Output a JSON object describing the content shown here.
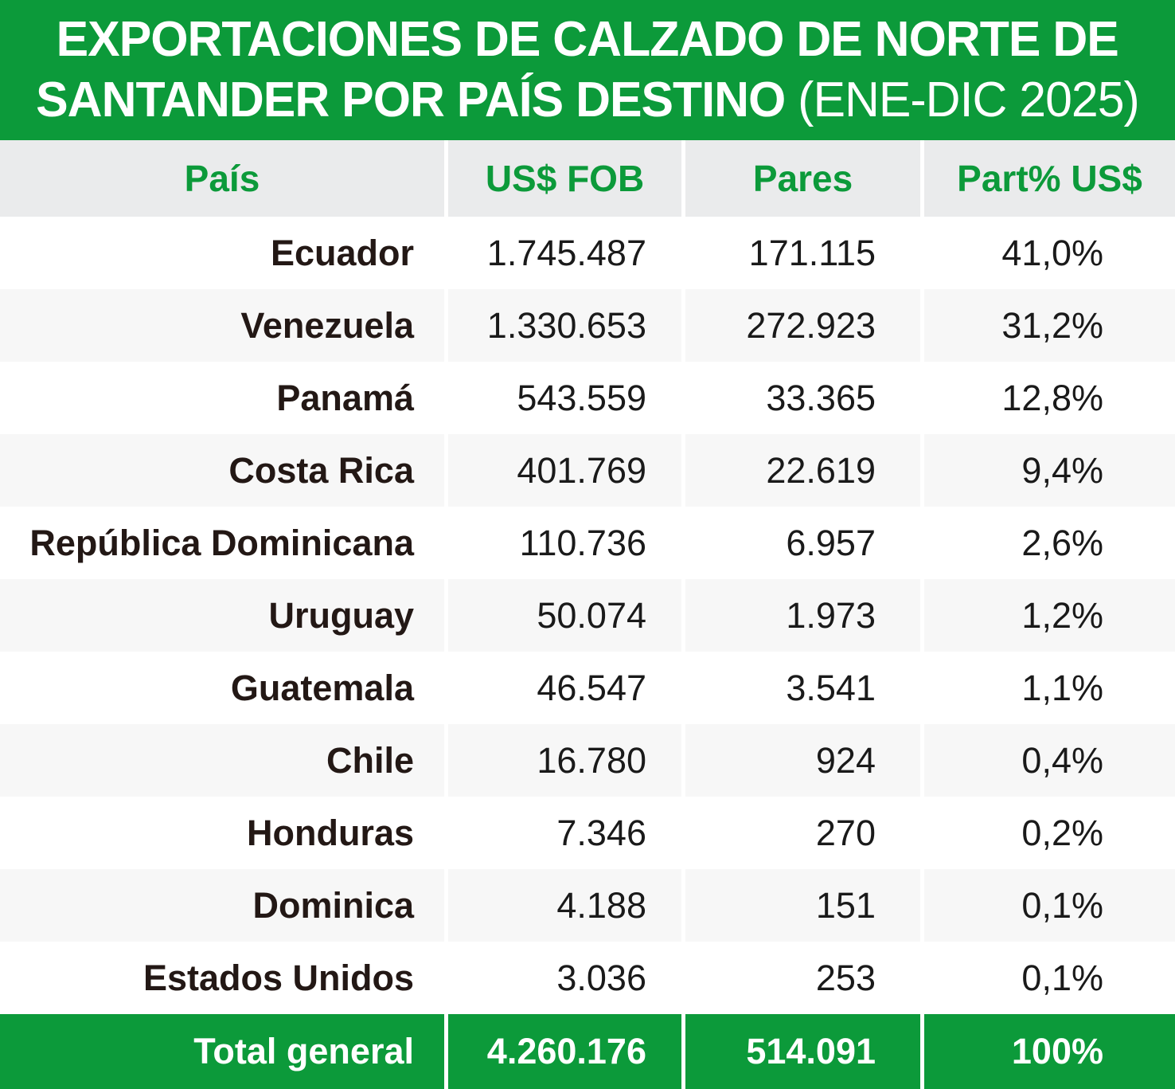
{
  "title": {
    "line1": "EXPORTACIONES DE CALZADO DE NORTE DE",
    "line2_bold": "SANTANDER POR PAÍS DESTINO ",
    "line2_light": "(ENE-DIC 2025)"
  },
  "colors": {
    "accent_green": "#0c9a3a",
    "header_bg": "#eaebec",
    "text_dark": "#231815"
  },
  "chart_data": {
    "type": "table",
    "title": "EXPORTACIONES DE CALZADO DE NORTE DE SANTANDER POR PAÍS DESTINO (ENE-DIC 2025)",
    "columns": [
      "País",
      "US$ FOB",
      "Pares",
      "Part% US$"
    ],
    "rows": [
      [
        "Ecuador",
        "1.745.487",
        "171.115",
        "41,0%"
      ],
      [
        "Venezuela",
        "1.330.653",
        "272.923",
        "31,2%"
      ],
      [
        "Panamá",
        "543.559",
        "33.365",
        "12,8%"
      ],
      [
        "Costa Rica",
        "401.769",
        "22.619",
        "9,4%"
      ],
      [
        "República Dominicana",
        "110.736",
        "6.957",
        "2,6%"
      ],
      [
        "Uruguay",
        "50.074",
        "1.973",
        "1,2%"
      ],
      [
        "Guatemala",
        "46.547",
        "3.541",
        "1,1%"
      ],
      [
        "Chile",
        "16.780",
        "924",
        "0,4%"
      ],
      [
        "Honduras",
        "7.346",
        "270",
        "0,2%"
      ],
      [
        "Dominica",
        "4.188",
        "151",
        "0,1%"
      ],
      [
        "Estados Unidos",
        "3.036",
        "253",
        "0,1%"
      ]
    ],
    "total": [
      "Total general",
      "4.260.176",
      "514.091",
      "100%"
    ]
  }
}
